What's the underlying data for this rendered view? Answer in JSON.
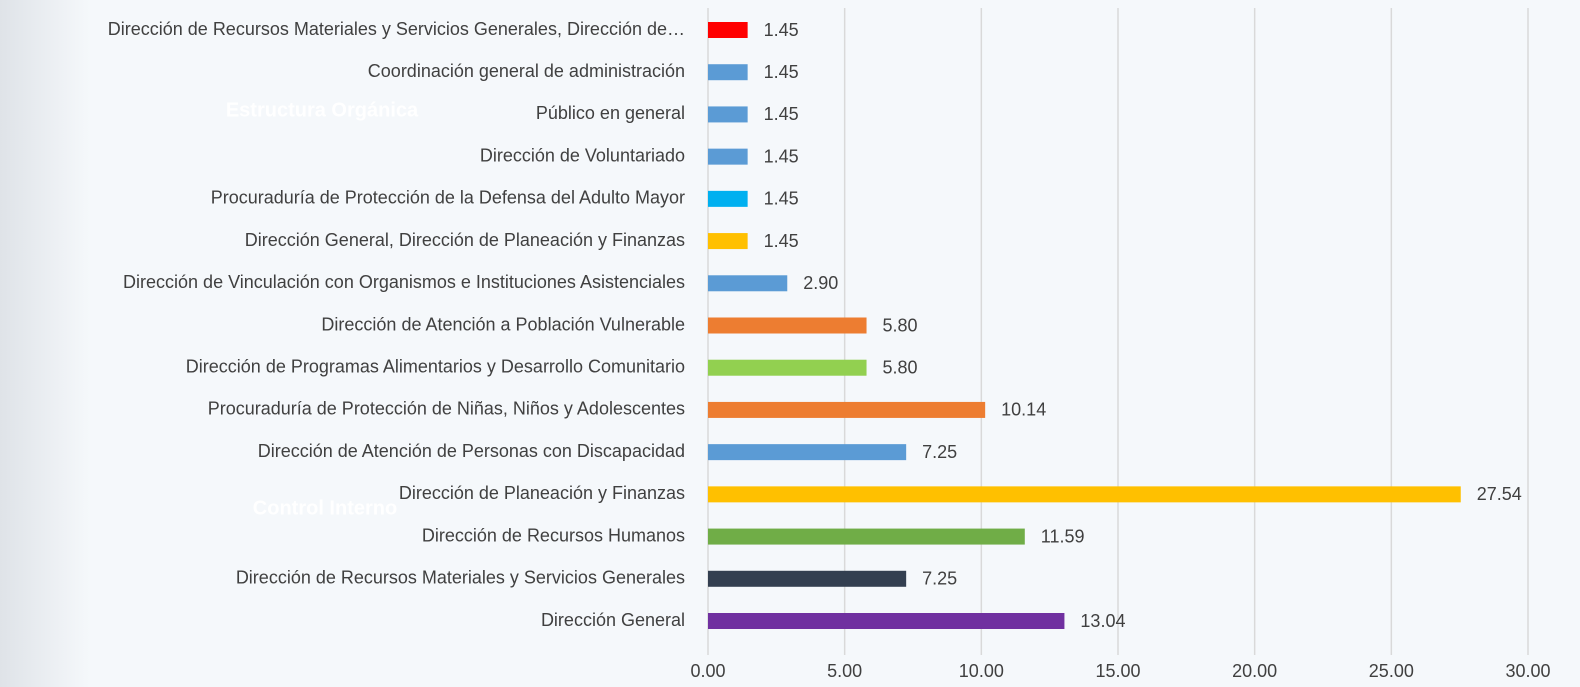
{
  "chart_data": {
    "type": "hbar",
    "categories": [
      "Dirección de Recursos Materiales y Servicios Generales, Dirección de…",
      "Coordinación general de administración",
      "Público en general",
      "Dirección de Voluntariado",
      "Procuraduría de Protección de la Defensa del Adulto Mayor",
      "Dirección General, Dirección de Planeación y Finanzas",
      "Dirección de Vinculación con Organismos e Instituciones Asistenciales",
      "Dirección de Atención a Población Vulnerable",
      "Dirección de Programas Alimentarios y Desarrollo Comunitario",
      "Procuraduría de Protección de Niñas, Niños y Adolescentes",
      "Dirección de Atención de Personas con Discapacidad",
      "Dirección de Planeación y Finanzas",
      "Dirección de Recursos Humanos",
      "Dirección de Recursos Materiales y Servicios Generales",
      "Dirección General"
    ],
    "values": [
      1.45,
      1.45,
      1.45,
      1.45,
      1.45,
      1.45,
      2.9,
      5.8,
      5.8,
      10.14,
      7.25,
      27.54,
      11.59,
      7.25,
      13.04
    ],
    "value_labels": [
      "1.45",
      "1.45",
      "1.45",
      "1.45",
      "1.45",
      "1.45",
      "2.90",
      "5.80",
      "5.80",
      "10.14",
      "7.25",
      "27.54",
      "11.59",
      "7.25",
      "13.04"
    ],
    "colors": [
      "#ff0000",
      "#5b9bd5",
      "#5b9bd5",
      "#5b9bd5",
      "#00b0f0",
      "#ffc000",
      "#5b9bd5",
      "#ed7d31",
      "#92d050",
      "#ed7d31",
      "#5b9bd5",
      "#ffc000",
      "#70ad47",
      "#333f50",
      "#7030a0"
    ],
    "xlim": [
      0,
      30
    ],
    "xticks": [
      {
        "value": 0,
        "label": "0.00"
      },
      {
        "value": 5,
        "label": "5.00"
      },
      {
        "value": 10,
        "label": "10.00"
      },
      {
        "value": 15,
        "label": "15.00"
      },
      {
        "value": 20,
        "label": "20.00"
      },
      {
        "value": 25,
        "label": "25.00"
      },
      {
        "value": 30,
        "label": "30.00"
      }
    ],
    "grid": true,
    "annotations": [
      "Estructura Orgánica",
      "Control Interno"
    ]
  }
}
